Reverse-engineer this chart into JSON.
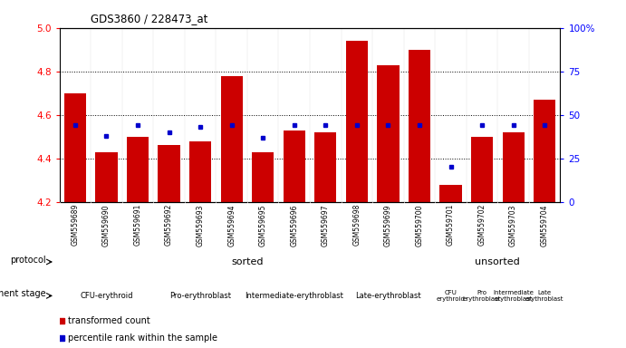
{
  "title": "GDS3860 / 228473_at",
  "samples": [
    "GSM559689",
    "GSM559690",
    "GSM559691",
    "GSM559692",
    "GSM559693",
    "GSM559694",
    "GSM559695",
    "GSM559696",
    "GSM559697",
    "GSM559698",
    "GSM559699",
    "GSM559700",
    "GSM559701",
    "GSM559702",
    "GSM559703",
    "GSM559704"
  ],
  "red_values": [
    4.7,
    4.43,
    4.5,
    4.46,
    4.48,
    4.78,
    4.43,
    4.53,
    4.52,
    4.94,
    4.83,
    4.9,
    4.28,
    4.5,
    4.52,
    4.67
  ],
  "blue_values": [
    44,
    38,
    44,
    40,
    43,
    44,
    37,
    44,
    44,
    44,
    44,
    44,
    20,
    44,
    44,
    44
  ],
  "ymin": 4.2,
  "ymax": 5.0,
  "right_yticks": [
    0,
    25,
    50,
    75,
    100
  ],
  "right_yticklabels": [
    "0",
    "25",
    "50",
    "75",
    "100%"
  ],
  "left_yticks": [
    4.2,
    4.4,
    4.6,
    4.8,
    5.0
  ],
  "dotted_lines": [
    4.4,
    4.6,
    4.8
  ],
  "bar_color": "#CC0000",
  "blue_color": "#0000CC",
  "protocol_sorted_color": "#AAFFAA",
  "protocol_unsorted_color": "#44DD44",
  "dev_stages": [
    {
      "label": "CFU-erythroid",
      "start": 0,
      "end": 3,
      "color": "#FFAAFF"
    },
    {
      "label": "Pro-erythroblast",
      "start": 3,
      "end": 6,
      "color": "#FF66FF"
    },
    {
      "label": "Intermediate-erythroblast",
      "start": 6,
      "end": 9,
      "color": "#FFAAFF"
    },
    {
      "label": "Late-erythroblast",
      "start": 9,
      "end": 12,
      "color": "#EE00EE"
    },
    {
      "label": "CFU-erythroid",
      "start": 12,
      "end": 13,
      "color": "#FFAAFF"
    },
    {
      "label": "Pro-erythroblast",
      "start": 13,
      "end": 14,
      "color": "#FF66FF"
    },
    {
      "label": "Intermediate-erythroblast",
      "start": 14,
      "end": 15,
      "color": "#FFAAFF"
    },
    {
      "label": "Late-erythroblast",
      "start": 15,
      "end": 16,
      "color": "#EE00EE"
    }
  ],
  "protocol_label": "protocol",
  "dev_label": "development stage",
  "legend_red": "transformed count",
  "legend_blue": "percentile rank within the sample",
  "protocol_sorted_text": "sorted",
  "protocol_unsorted_text": "unsorted"
}
